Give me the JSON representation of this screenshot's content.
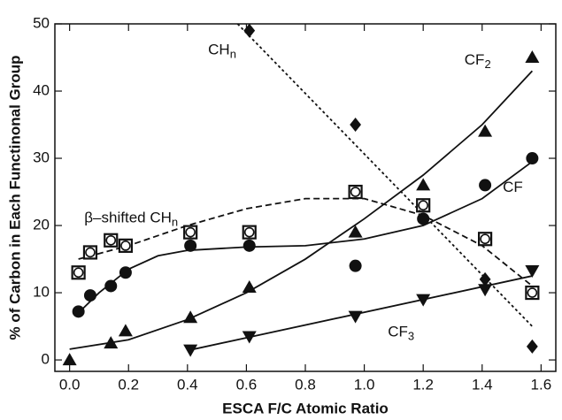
{
  "chart_data": {
    "type": "scatter",
    "xlabel": "ESCA F/C Atomic Ratio",
    "ylabel": "% of Carbon in Each Functinonal Group",
    "xlim": [
      -0.05,
      1.65
    ],
    "ylim": [
      -1.7,
      50
    ],
    "xticks": [
      {
        "value": 0,
        "label": "0.0"
      },
      0.2,
      0.4,
      0.6,
      0.8,
      {
        "value": 1,
        "label": "1.0"
      },
      1.2,
      1.4,
      1.6
    ],
    "yticks": [
      0,
      10,
      20,
      30,
      40,
      50
    ],
    "series": [
      {
        "name": "CF",
        "subscript": "2",
        "marker": "triangle-up",
        "color": "#111111",
        "dash": "solid",
        "x": [
          0.0,
          0.14,
          0.19,
          0.41,
          0.61,
          0.97,
          1.2,
          1.41,
          1.57
        ],
        "values": [
          0,
          2.5,
          4.3,
          6.3,
          10.8,
          19,
          26,
          34,
          45
        ],
        "fit": {
          "x": [
            0,
            0.2,
            0.4,
            0.6,
            0.8,
            1.0,
            1.2,
            1.4,
            1.57
          ],
          "y": [
            1.6,
            3,
            6,
            10,
            15,
            21,
            27.5,
            35,
            43
          ]
        }
      },
      {
        "name": "CF",
        "marker": "circle",
        "color": "#111111",
        "dash": "solid",
        "x": [
          0.03,
          0.07,
          0.14,
          0.19,
          0.41,
          0.61,
          0.97,
          1.2,
          1.41,
          1.57
        ],
        "values": [
          7.2,
          9.6,
          11,
          13,
          17,
          17,
          14,
          21,
          26,
          30
        ],
        "fit": {
          "x": [
            0.03,
            0.1,
            0.2,
            0.3,
            0.4,
            0.6,
            0.8,
            1.0,
            1.2,
            1.4,
            1.57
          ],
          "y": [
            7,
            10,
            13.5,
            15.5,
            16.3,
            16.8,
            17,
            18,
            20,
            24,
            29.5
          ]
        }
      },
      {
        "name": "β–shifted CH",
        "subscript": "n",
        "marker": "square-circle",
        "color": "#111111",
        "dash": "dashed",
        "x": [
          0.03,
          0.07,
          0.14,
          0.19,
          0.41,
          0.61,
          0.97,
          1.2,
          1.41,
          1.57
        ],
        "values": [
          13,
          16,
          17.8,
          17,
          19,
          19,
          25,
          23,
          18,
          10
        ],
        "fit": {
          "x": [
            0.03,
            0.2,
            0.4,
            0.6,
            0.8,
            1.0,
            1.2,
            1.4,
            1.57
          ],
          "y": [
            15,
            17,
            20,
            22.5,
            24,
            24,
            21.5,
            17,
            11
          ]
        }
      },
      {
        "name": "CH",
        "subscript": "n",
        "marker": "diamond",
        "color": "#111111",
        "dash": "dotted",
        "x": [
          0.61,
          0.97,
          1.41,
          1.57
        ],
        "values": [
          49,
          35,
          12,
          2
        ],
        "fit": {
          "x": [
            0.57,
            1.57
          ],
          "y": [
            50,
            5
          ]
        }
      },
      {
        "name": "CF",
        "subscript": "3",
        "marker": "triangle-down",
        "color": "#111111",
        "dash": "solid",
        "x": [
          0.41,
          0.61,
          0.97,
          1.2,
          1.41,
          1.57
        ],
        "values": [
          1.5,
          3.5,
          6.5,
          9,
          10.5,
          13.3
        ],
        "fit": {
          "x": [
            0.4,
            1.57
          ],
          "y": [
            1.4,
            12.5
          ]
        }
      }
    ]
  }
}
